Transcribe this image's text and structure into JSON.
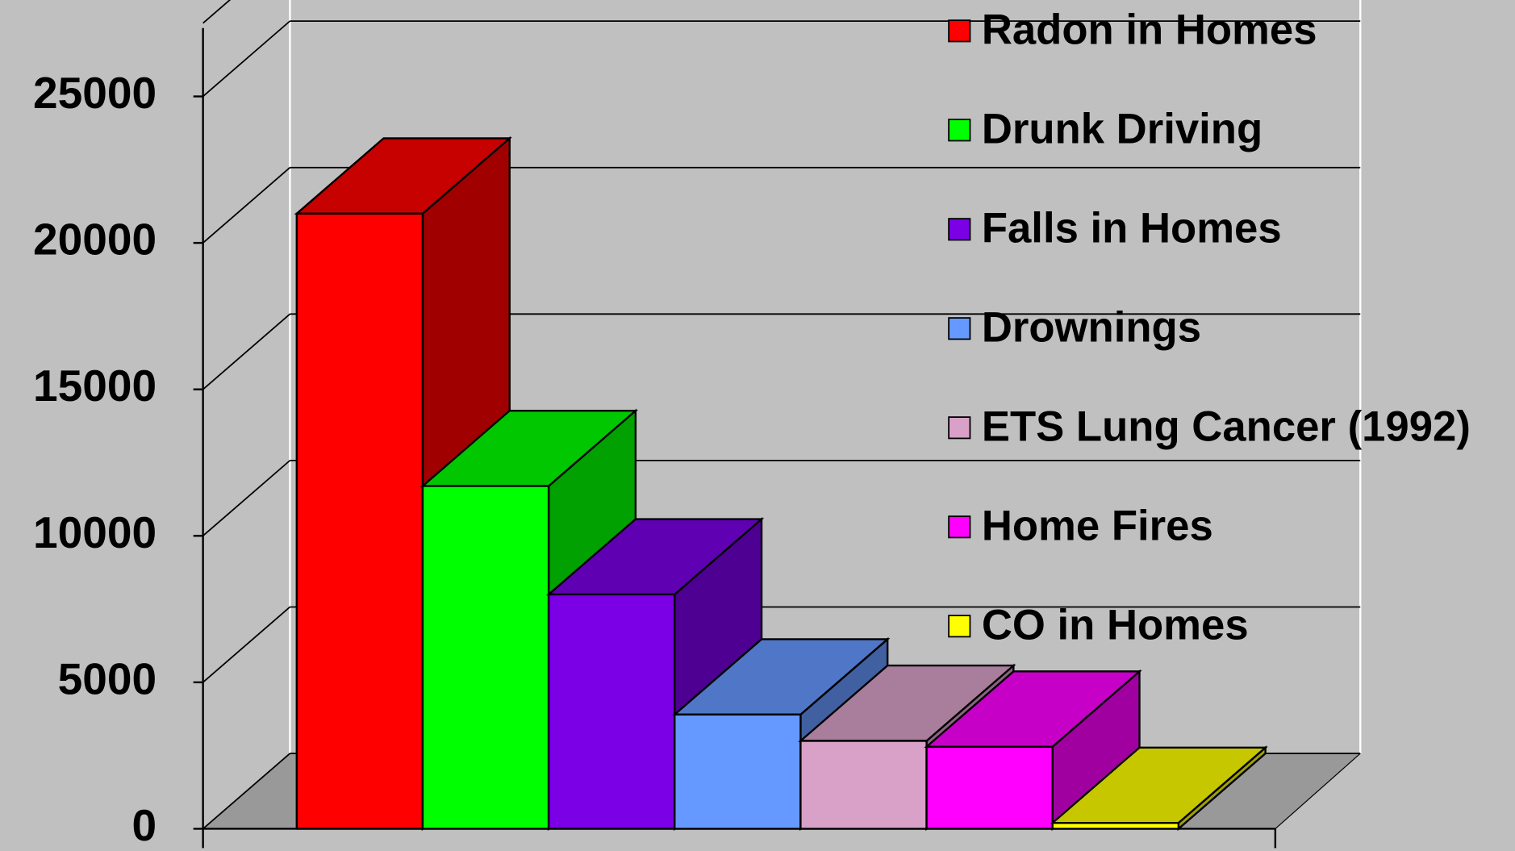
{
  "chart_data": {
    "type": "bar3d",
    "categories": [
      "Radon in Homes",
      "Drunk Driving",
      "Falls in Homes",
      "Drownings",
      "ETS Lung Cancer (1992)",
      "Home Fires",
      "CO in Homes"
    ],
    "values": [
      21000,
      11700,
      8000,
      3900,
      3000,
      2800,
      200
    ],
    "colors": [
      "#ff0000",
      "#00ff00",
      "#7b00e6",
      "#6699ff",
      "#d9a0c8",
      "#ff00ff",
      "#ffff00"
    ],
    "ylim": [
      0,
      27500
    ],
    "yticks": [
      0,
      5000,
      10000,
      15000,
      20000,
      25000
    ],
    "grid": true,
    "legend": "right"
  }
}
